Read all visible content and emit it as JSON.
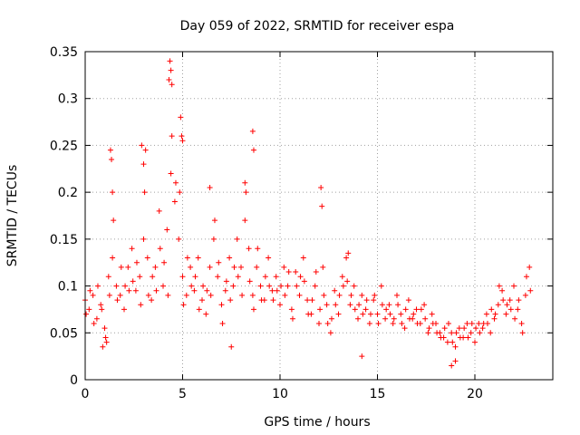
{
  "chart_data": {
    "type": "scatter",
    "title": "Day 059 of 2022, SRMTID for receiver espa",
    "xlabel": "GPS time / hours",
    "ylabel": "SRMTID / TECUs",
    "xlim": [
      0,
      24
    ],
    "ylim": [
      0,
      0.35
    ],
    "x_ticks": [
      0,
      5,
      10,
      15,
      20
    ],
    "x_tick_labels": [
      "0",
      "5",
      "10",
      "15",
      "20"
    ],
    "y_ticks": [
      0,
      0.05,
      0.1,
      0.15,
      0.2,
      0.25,
      0.3,
      0.35
    ],
    "y_tick_labels": [
      "0",
      "0.05",
      "0.1",
      "0.15",
      "0.2",
      "0.25",
      "0.3",
      "0.35"
    ],
    "grid": true,
    "marker": "+",
    "series": [
      {
        "name": "SRMTID",
        "color": "#ff0000",
        "x": [
          0.0,
          0.2,
          0.4,
          0.6,
          0.8,
          1.0,
          1.2,
          1.4,
          1.6,
          1.8,
          2.0,
          2.2,
          2.4,
          2.6,
          2.8,
          3.0,
          3.2,
          3.4,
          3.6,
          3.8,
          4.0,
          4.2,
          4.4,
          4.6,
          4.8,
          5.0,
          5.2,
          5.4,
          5.6,
          5.8,
          6.0,
          6.2,
          6.4,
          6.6,
          6.8,
          7.0,
          7.2,
          7.4,
          7.6,
          7.8,
          8.0,
          8.2,
          8.4,
          8.6,
          8.8,
          9.0,
          9.2,
          9.4,
          9.6,
          9.8,
          10.0,
          10.2,
          10.4,
          10.6,
          10.8,
          11.0,
          11.2,
          11.4,
          11.6,
          11.8,
          12.0,
          12.2,
          12.4,
          12.6,
          12.8,
          13.0,
          13.2,
          13.4,
          13.6,
          13.8,
          14.0,
          14.2,
          14.4,
          14.6,
          14.8,
          15.0,
          15.2,
          15.4,
          15.6,
          15.8,
          16.0,
          16.2,
          16.4,
          16.6,
          16.8,
          17.0,
          17.2,
          17.4,
          17.6,
          17.8,
          18.0,
          18.2,
          18.4,
          18.6,
          18.8,
          19.0,
          19.2,
          19.4,
          19.6,
          19.8,
          20.0,
          20.2,
          20.4,
          20.6,
          20.8,
          21.0,
          21.2,
          21.4,
          21.6,
          21.8,
          22.0,
          22.2,
          22.4,
          22.6,
          22.8,
          0.05,
          0.25,
          0.45,
          0.65,
          0.85,
          1.05,
          1.25,
          1.45,
          1.65,
          1.85,
          2.05,
          2.25,
          2.45,
          2.65,
          2.85,
          3.05,
          3.25,
          3.45,
          3.65,
          3.85,
          4.05,
          4.25,
          4.45,
          4.65,
          4.85,
          5.05,
          5.25,
          5.45,
          5.65,
          5.85,
          6.05,
          6.25,
          6.45,
          6.65,
          6.85,
          7.05,
          7.25,
          7.45,
          7.65,
          7.85,
          8.05,
          8.25,
          8.45,
          8.65,
          8.85,
          9.05,
          9.25,
          9.45,
          9.65,
          9.85,
          10.05,
          10.25,
          10.45,
          10.65,
          10.85,
          11.05,
          11.25,
          11.45,
          11.65,
          11.85,
          12.05,
          12.25,
          12.45,
          12.65,
          12.85,
          13.05,
          13.25,
          13.45,
          13.65,
          13.85,
          14.05,
          14.25,
          14.45,
          14.65,
          14.85,
          15.05,
          15.25,
          15.45,
          15.65,
          15.85,
          16.05,
          16.25,
          16.45,
          16.65,
          16.85,
          17.05,
          17.25,
          17.45,
          17.65,
          17.85,
          18.05,
          18.25,
          18.45,
          18.65,
          18.85,
          19.05,
          19.25,
          19.45,
          19.65,
          19.85,
          20.05,
          20.25,
          20.45,
          20.65,
          20.85,
          21.05,
          21.25,
          21.45,
          21.65,
          21.85,
          22.05,
          22.25,
          22.45,
          22.65,
          22.85,
          1.3,
          1.35,
          1.4,
          2.9,
          3.0,
          3.1,
          4.3,
          4.35,
          4.4,
          4.45,
          4.9,
          4.95,
          5.0,
          8.6,
          8.65,
          12.1,
          12.15,
          0.9,
          1.1,
          6.4,
          8.2,
          18.8,
          19.0,
          7.5,
          13.5,
          14.2
        ],
        "y": [
          0.085,
          0.075,
          0.09,
          0.065,
          0.08,
          0.055,
          0.11,
          0.13,
          0.1,
          0.09,
          0.075,
          0.12,
          0.14,
          0.095,
          0.11,
          0.15,
          0.13,
          0.085,
          0.12,
          0.18,
          0.1,
          0.16,
          0.22,
          0.19,
          0.15,
          0.11,
          0.09,
          0.12,
          0.095,
          0.13,
          0.085,
          0.07,
          0.12,
          0.15,
          0.11,
          0.08,
          0.095,
          0.13,
          0.1,
          0.15,
          0.12,
          0.17,
          0.14,
          0.09,
          0.12,
          0.1,
          0.085,
          0.13,
          0.095,
          0.11,
          0.08,
          0.12,
          0.1,
          0.075,
          0.115,
          0.09,
          0.13,
          0.085,
          0.07,
          0.1,
          0.06,
          0.12,
          0.08,
          0.05,
          0.095,
          0.07,
          0.11,
          0.13,
          0.08,
          0.1,
          0.065,
          0.09,
          0.075,
          0.06,
          0.085,
          0.07,
          0.1,
          0.065,
          0.08,
          0.06,
          0.09,
          0.07,
          0.055,
          0.085,
          0.065,
          0.075,
          0.06,
          0.08,
          0.05,
          0.07,
          0.06,
          0.05,
          0.045,
          0.04,
          0.05,
          0.035,
          0.055,
          0.045,
          0.06,
          0.05,
          0.04,
          0.06,
          0.055,
          0.07,
          0.05,
          0.065,
          0.08,
          0.095,
          0.07,
          0.085,
          0.1,
          0.075,
          0.06,
          0.09,
          0.12,
          0.07,
          0.095,
          0.06,
          0.1,
          0.075,
          0.045,
          0.09,
          0.17,
          0.085,
          0.12,
          0.1,
          0.095,
          0.105,
          0.125,
          0.08,
          0.2,
          0.09,
          0.11,
          0.095,
          0.14,
          0.125,
          0.09,
          0.26,
          0.21,
          0.2,
          0.08,
          0.13,
          0.1,
          0.11,
          0.075,
          0.1,
          0.095,
          0.09,
          0.17,
          0.125,
          0.06,
          0.105,
          0.085,
          0.12,
          0.11,
          0.09,
          0.2,
          0.105,
          0.075,
          0.14,
          0.085,
          0.11,
          0.1,
          0.085,
          0.095,
          0.1,
          0.09,
          0.115,
          0.065,
          0.1,
          0.11,
          0.105,
          0.07,
          0.085,
          0.115,
          0.075,
          0.09,
          0.06,
          0.065,
          0.08,
          0.09,
          0.1,
          0.105,
          0.09,
          0.075,
          0.08,
          0.07,
          0.085,
          0.07,
          0.09,
          0.06,
          0.08,
          0.075,
          0.07,
          0.065,
          0.08,
          0.06,
          0.075,
          0.065,
          0.07,
          0.06,
          0.075,
          0.065,
          0.055,
          0.06,
          0.05,
          0.045,
          0.055,
          0.06,
          0.04,
          0.05,
          0.045,
          0.055,
          0.045,
          0.06,
          0.055,
          0.05,
          0.06,
          0.06,
          0.075,
          0.07,
          0.1,
          0.085,
          0.08,
          0.075,
          0.065,
          0.085,
          0.05,
          0.11,
          0.095,
          0.245,
          0.235,
          0.2,
          0.25,
          0.23,
          0.245,
          0.32,
          0.34,
          0.33,
          0.315,
          0.28,
          0.26,
          0.255,
          0.265,
          0.245,
          0.205,
          0.185,
          0.035,
          0.04,
          0.205,
          0.21,
          0.015,
          0.02,
          0.035,
          0.135,
          0.025
        ]
      }
    ]
  }
}
